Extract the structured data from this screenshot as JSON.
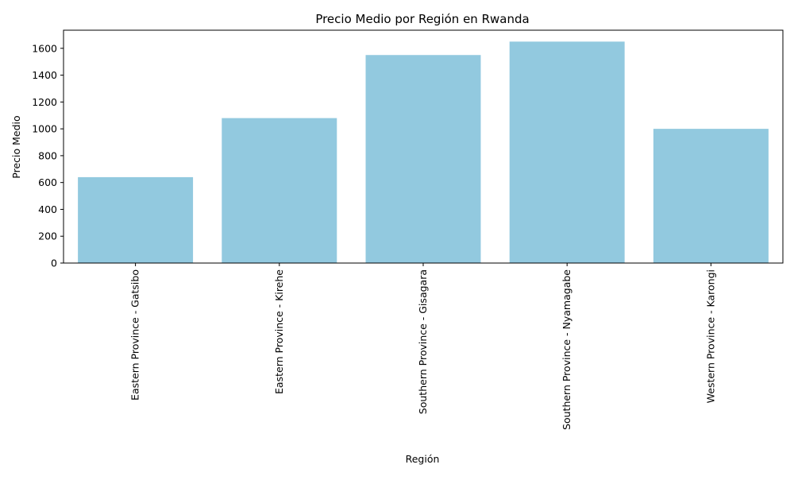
{
  "chart_data": {
    "type": "bar",
    "title": "Precio Medio por Región en Rwanda",
    "xlabel": "Región",
    "ylabel": "Precio Medio",
    "categories": [
      "Eastern Province - Gatsibo",
      "Eastern Province - Kirehe",
      "Southern Province - Gisagara",
      "Southern Province - Nyamagabe",
      "Western Province - Karongi"
    ],
    "values": [
      640,
      1080,
      1550,
      1650,
      1000
    ],
    "ylim": [
      0,
      1735
    ],
    "yticks": [
      0,
      200,
      400,
      600,
      800,
      1000,
      1200,
      1400,
      1600
    ],
    "grid": false,
    "bar_color": "#92c9df"
  }
}
